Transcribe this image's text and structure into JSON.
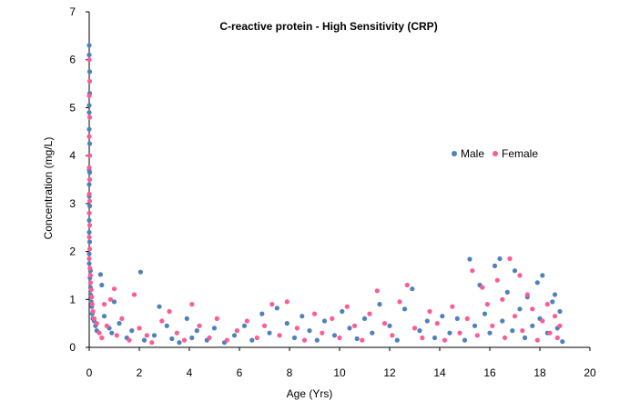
{
  "chart_data": {
    "type": "scatter",
    "title": "C-reactive protein - High Sensitivity (CRP)",
    "xlabel": "Age (Yrs)",
    "ylabel": "Concentration (mg/L)",
    "xlim": [
      0,
      20
    ],
    "ylim": [
      0,
      7
    ],
    "xticks": [
      "0",
      "2",
      "4",
      "6",
      "8",
      "10",
      "12",
      "14",
      "16",
      "18",
      "20"
    ],
    "yticks": [
      "0",
      "1",
      "2",
      "3",
      "4",
      "5",
      "6",
      "7"
    ],
    "grid": false,
    "legend_position": "right",
    "series": [
      {
        "name": "Male",
        "color": "#4f81bd",
        "points": [
          [
            0.0,
            6.3
          ],
          [
            0.0,
            6.1
          ],
          [
            0.02,
            5.75
          ],
          [
            0.02,
            5.3
          ],
          [
            0.0,
            5.05
          ],
          [
            0.0,
            4.9
          ],
          [
            0.0,
            4.55
          ],
          [
            0.02,
            4.25
          ],
          [
            0.0,
            3.7
          ],
          [
            0.02,
            3.65
          ],
          [
            0.0,
            3.4
          ],
          [
            0.0,
            3.15
          ],
          [
            0.02,
            2.95
          ],
          [
            0.0,
            2.65
          ],
          [
            0.0,
            2.4
          ],
          [
            0.02,
            2.2
          ],
          [
            0.0,
            1.95
          ],
          [
            0.0,
            1.75
          ],
          [
            0.05,
            1.6
          ],
          [
            0.03,
            1.45
          ],
          [
            0.05,
            1.25
          ],
          [
            0.05,
            1.1
          ],
          [
            0.08,
            0.95
          ],
          [
            0.1,
            0.85
          ],
          [
            0.12,
            0.7
          ],
          [
            0.15,
            0.6
          ],
          [
            0.2,
            0.55
          ],
          [
            0.25,
            0.45
          ],
          [
            0.3,
            0.35
          ],
          [
            0.45,
            1.52
          ],
          [
            0.5,
            1.3
          ],
          [
            0.6,
            0.65
          ],
          [
            0.8,
            0.4
          ],
          [
            0.9,
            0.3
          ],
          [
            1.0,
            0.95
          ],
          [
            1.2,
            0.5
          ],
          [
            1.5,
            0.2
          ],
          [
            1.7,
            0.35
          ],
          [
            2.05,
            1.57
          ],
          [
            2.2,
            0.15
          ],
          [
            2.6,
            0.25
          ],
          [
            2.8,
            0.85
          ],
          [
            3.1,
            0.45
          ],
          [
            3.3,
            0.18
          ],
          [
            3.6,
            0.1
          ],
          [
            3.9,
            0.6
          ],
          [
            4.1,
            0.2
          ],
          [
            4.3,
            0.35
          ],
          [
            4.7,
            0.15
          ],
          [
            5.0,
            0.4
          ],
          [
            5.4,
            0.1
          ],
          [
            5.8,
            0.25
          ],
          [
            6.2,
            0.45
          ],
          [
            6.5,
            0.15
          ],
          [
            6.9,
            0.7
          ],
          [
            7.2,
            0.3
          ],
          [
            7.5,
            0.82
          ],
          [
            7.9,
            0.5
          ],
          [
            8.2,
            0.2
          ],
          [
            8.5,
            0.65
          ],
          [
            8.8,
            0.35
          ],
          [
            9.1,
            0.15
          ],
          [
            9.4,
            0.55
          ],
          [
            9.8,
            0.25
          ],
          [
            10.1,
            0.75
          ],
          [
            10.4,
            0.4
          ],
          [
            10.7,
            0.18
          ],
          [
            11.0,
            0.6
          ],
          [
            11.3,
            0.3
          ],
          [
            11.6,
            0.9
          ],
          [
            12.0,
            0.45
          ],
          [
            12.3,
            0.15
          ],
          [
            12.6,
            0.8
          ],
          [
            12.9,
            1.22
          ],
          [
            13.2,
            0.35
          ],
          [
            13.5,
            0.55
          ],
          [
            13.8,
            0.2
          ],
          [
            14.1,
            0.65
          ],
          [
            14.4,
            0.3
          ],
          [
            14.7,
            0.6
          ],
          [
            15.0,
            0.15
          ],
          [
            15.2,
            1.84
          ],
          [
            15.4,
            0.45
          ],
          [
            15.6,
            1.3
          ],
          [
            15.8,
            0.7
          ],
          [
            16.0,
            0.3
          ],
          [
            16.2,
            1.7
          ],
          [
            16.4,
            1.85
          ],
          [
            16.5,
            0.55
          ],
          [
            16.7,
            1.15
          ],
          [
            16.9,
            0.35
          ],
          [
            17.0,
            1.6
          ],
          [
            17.2,
            0.8
          ],
          [
            17.4,
            0.2
          ],
          [
            17.5,
            1.05
          ],
          [
            17.7,
            0.45
          ],
          [
            17.9,
            1.35
          ],
          [
            18.0,
            0.6
          ],
          [
            18.1,
            1.5
          ],
          [
            18.3,
            0.3
          ],
          [
            18.5,
            0.95
          ],
          [
            18.6,
            1.1
          ],
          [
            18.7,
            0.4
          ],
          [
            18.8,
            0.75
          ],
          [
            18.9,
            0.12
          ]
        ]
      },
      {
        "name": "Female",
        "color": "#ff5b94",
        "points": [
          [
            0.0,
            6.0
          ],
          [
            0.02,
            5.55
          ],
          [
            0.0,
            5.25
          ],
          [
            0.02,
            4.8
          ],
          [
            0.0,
            4.4
          ],
          [
            0.02,
            4.0
          ],
          [
            0.0,
            3.75
          ],
          [
            0.02,
            3.5
          ],
          [
            0.0,
            3.2
          ],
          [
            0.02,
            3.05
          ],
          [
            0.0,
            2.8
          ],
          [
            0.02,
            2.55
          ],
          [
            0.0,
            2.3
          ],
          [
            0.02,
            2.05
          ],
          [
            0.0,
            1.85
          ],
          [
            0.03,
            1.65
          ],
          [
            0.05,
            1.5
          ],
          [
            0.05,
            1.35
          ],
          [
            0.08,
            1.2
          ],
          [
            0.1,
            1.05
          ],
          [
            0.12,
            0.9
          ],
          [
            0.15,
            0.75
          ],
          [
            0.2,
            0.6
          ],
          [
            0.3,
            0.5
          ],
          [
            0.4,
            0.3
          ],
          [
            0.5,
            0.2
          ],
          [
            0.6,
            0.9
          ],
          [
            0.7,
            0.45
          ],
          [
            0.85,
            1.0
          ],
          [
            1.0,
            1.22
          ],
          [
            1.1,
            0.25
          ],
          [
            1.3,
            0.6
          ],
          [
            1.6,
            0.15
          ],
          [
            1.8,
            1.1
          ],
          [
            2.0,
            0.4
          ],
          [
            2.3,
            0.25
          ],
          [
            2.5,
            0.1
          ],
          [
            2.9,
            0.55
          ],
          [
            3.2,
            0.75
          ],
          [
            3.5,
            0.3
          ],
          [
            3.8,
            0.15
          ],
          [
            4.1,
            0.9
          ],
          [
            4.4,
            0.45
          ],
          [
            4.8,
            0.2
          ],
          [
            5.1,
            0.6
          ],
          [
            5.5,
            0.15
          ],
          [
            5.9,
            0.35
          ],
          [
            6.3,
            0.55
          ],
          [
            6.7,
            0.2
          ],
          [
            7.0,
            0.45
          ],
          [
            7.3,
            0.9
          ],
          [
            7.6,
            0.25
          ],
          [
            7.9,
            0.95
          ],
          [
            8.3,
            0.4
          ],
          [
            8.6,
            0.15
          ],
          [
            9.0,
            0.7
          ],
          [
            9.3,
            0.3
          ],
          [
            9.7,
            0.6
          ],
          [
            10.0,
            0.2
          ],
          [
            10.3,
            0.85
          ],
          [
            10.6,
            0.45
          ],
          [
            10.9,
            0.15
          ],
          [
            11.2,
            0.7
          ],
          [
            11.5,
            1.18
          ],
          [
            11.8,
            0.5
          ],
          [
            12.1,
            0.25
          ],
          [
            12.4,
            0.95
          ],
          [
            12.7,
            1.3
          ],
          [
            13.0,
            0.4
          ],
          [
            13.3,
            0.2
          ],
          [
            13.6,
            0.75
          ],
          [
            13.9,
            0.5
          ],
          [
            14.2,
            0.15
          ],
          [
            14.5,
            0.85
          ],
          [
            14.8,
            0.3
          ],
          [
            15.1,
            0.6
          ],
          [
            15.3,
            1.6
          ],
          [
            15.5,
            0.25
          ],
          [
            15.7,
            1.25
          ],
          [
            15.9,
            0.9
          ],
          [
            16.1,
            0.45
          ],
          [
            16.3,
            1.4
          ],
          [
            16.5,
            1.0
          ],
          [
            16.6,
            0.2
          ],
          [
            16.8,
            1.85
          ],
          [
            17.0,
            0.65
          ],
          [
            17.2,
            1.5
          ],
          [
            17.3,
            0.35
          ],
          [
            17.5,
            1.1
          ],
          [
            17.7,
            0.8
          ],
          [
            17.9,
            0.15
          ],
          [
            18.1,
            0.55
          ],
          [
            18.3,
            0.9
          ],
          [
            18.4,
            0.3
          ],
          [
            18.6,
            0.65
          ],
          [
            18.7,
            0.2
          ],
          [
            18.8,
            0.45
          ]
        ]
      }
    ]
  }
}
